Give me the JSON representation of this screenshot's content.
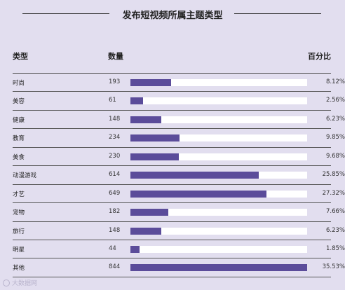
{
  "chart_data": {
    "type": "bar",
    "title": "发布短视频所属主题类型",
    "columns": [
      "类型",
      "数量",
      "百分比"
    ],
    "categories": [
      "时尚",
      "美容",
      "健康",
      "教育",
      "美食",
      "动漫游戏",
      "才艺",
      "宠物",
      "旅行",
      "明星",
      "其他"
    ],
    "values": [
      193,
      61,
      148,
      234,
      230,
      614,
      649,
      182,
      148,
      44,
      844
    ],
    "percent_labels": [
      "8.12%",
      "2.56%",
      "6.23%",
      "9.85%",
      "9.68%",
      "25.85%",
      "27.32%",
      "7.66%",
      "6.23%",
      "1.85%",
      "35.53%"
    ],
    "xlim": [
      0,
      844
    ],
    "bar_color": "#5b4c9a",
    "track_color": "#ffffff"
  },
  "watermark": "大数据网"
}
